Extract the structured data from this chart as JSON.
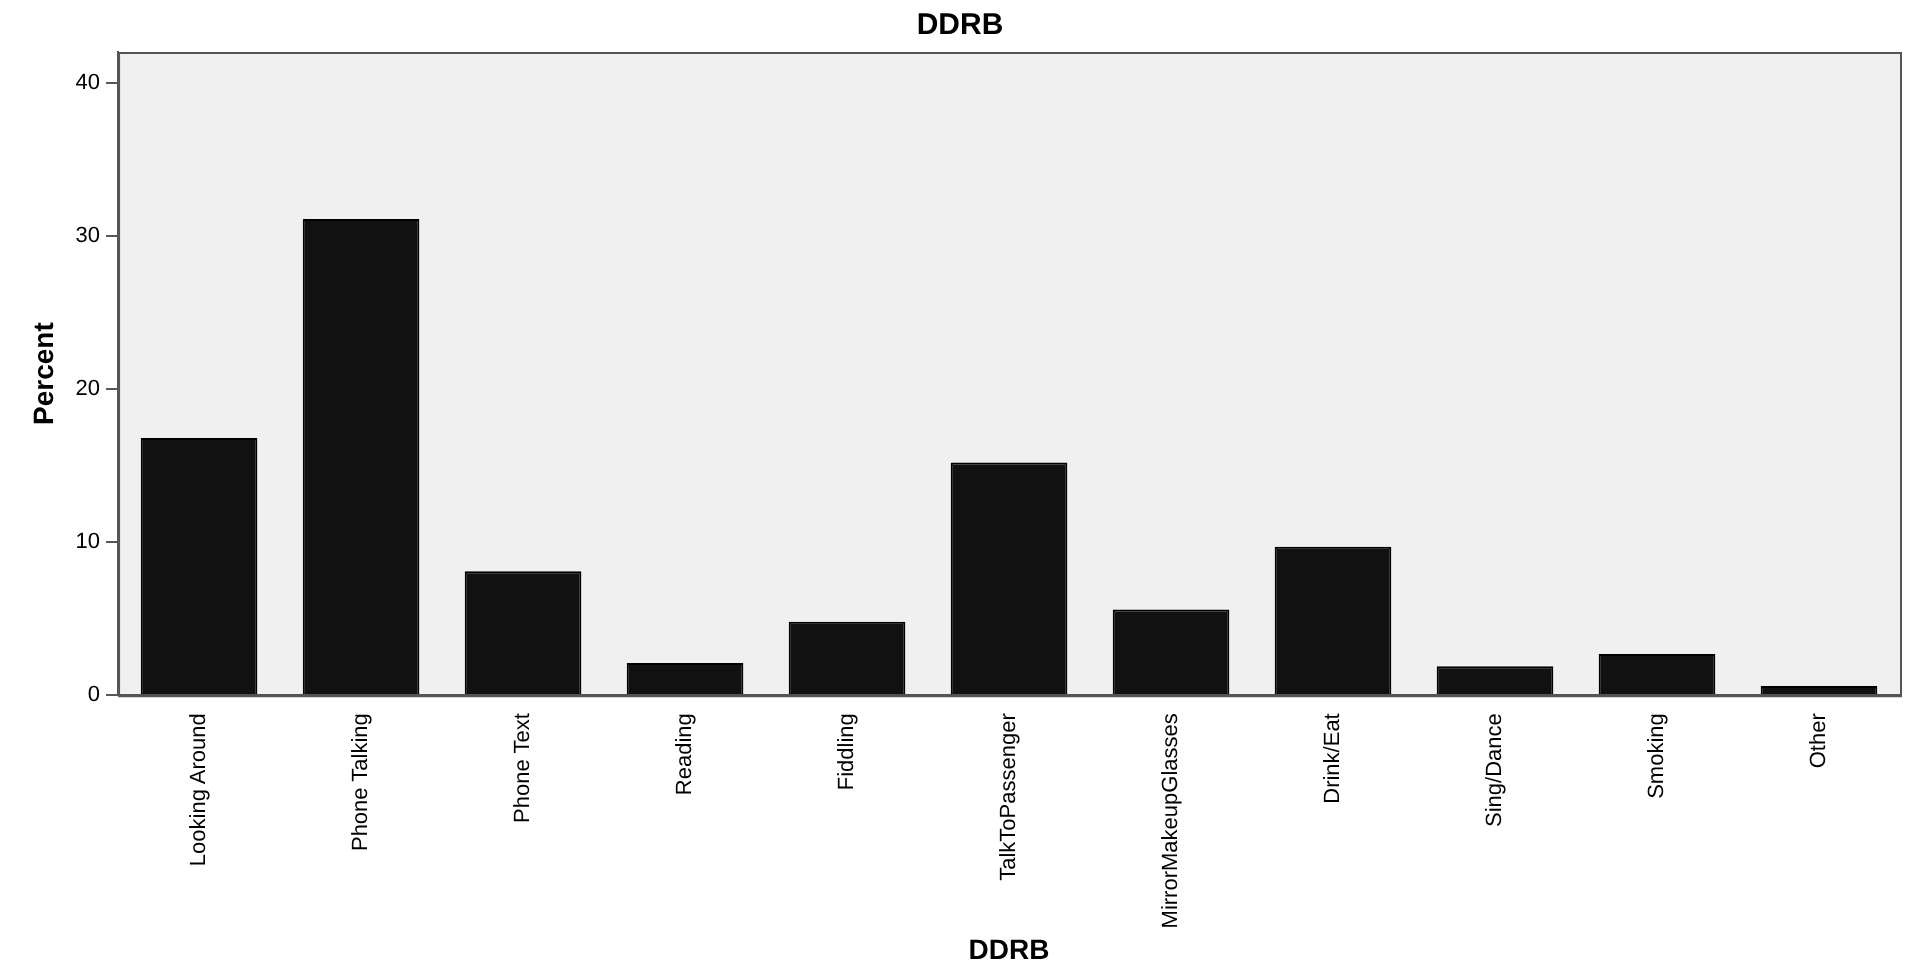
{
  "chart_data": {
    "type": "bar",
    "title": "DDRB",
    "xlabel": "DDRB",
    "ylabel": "Percent",
    "categories": [
      "Looking Around",
      "Phone Talking",
      "Phone Text",
      "Reading",
      "Fiddling",
      "TalkToPassenger",
      "MirrorMakeupGlasses",
      "Drink/Eat",
      "Sing/Dance",
      "Smoking",
      "Other"
    ],
    "values": [
      16.8,
      31.1,
      8.1,
      2.1,
      4.8,
      15.2,
      5.6,
      9.7,
      1.9,
      2.7,
      0.6
    ],
    "color": "#111111",
    "ylim": [
      0,
      42
    ],
    "yticks": [
      0,
      10,
      20,
      30,
      40
    ],
    "grid": false,
    "legend": false
  }
}
